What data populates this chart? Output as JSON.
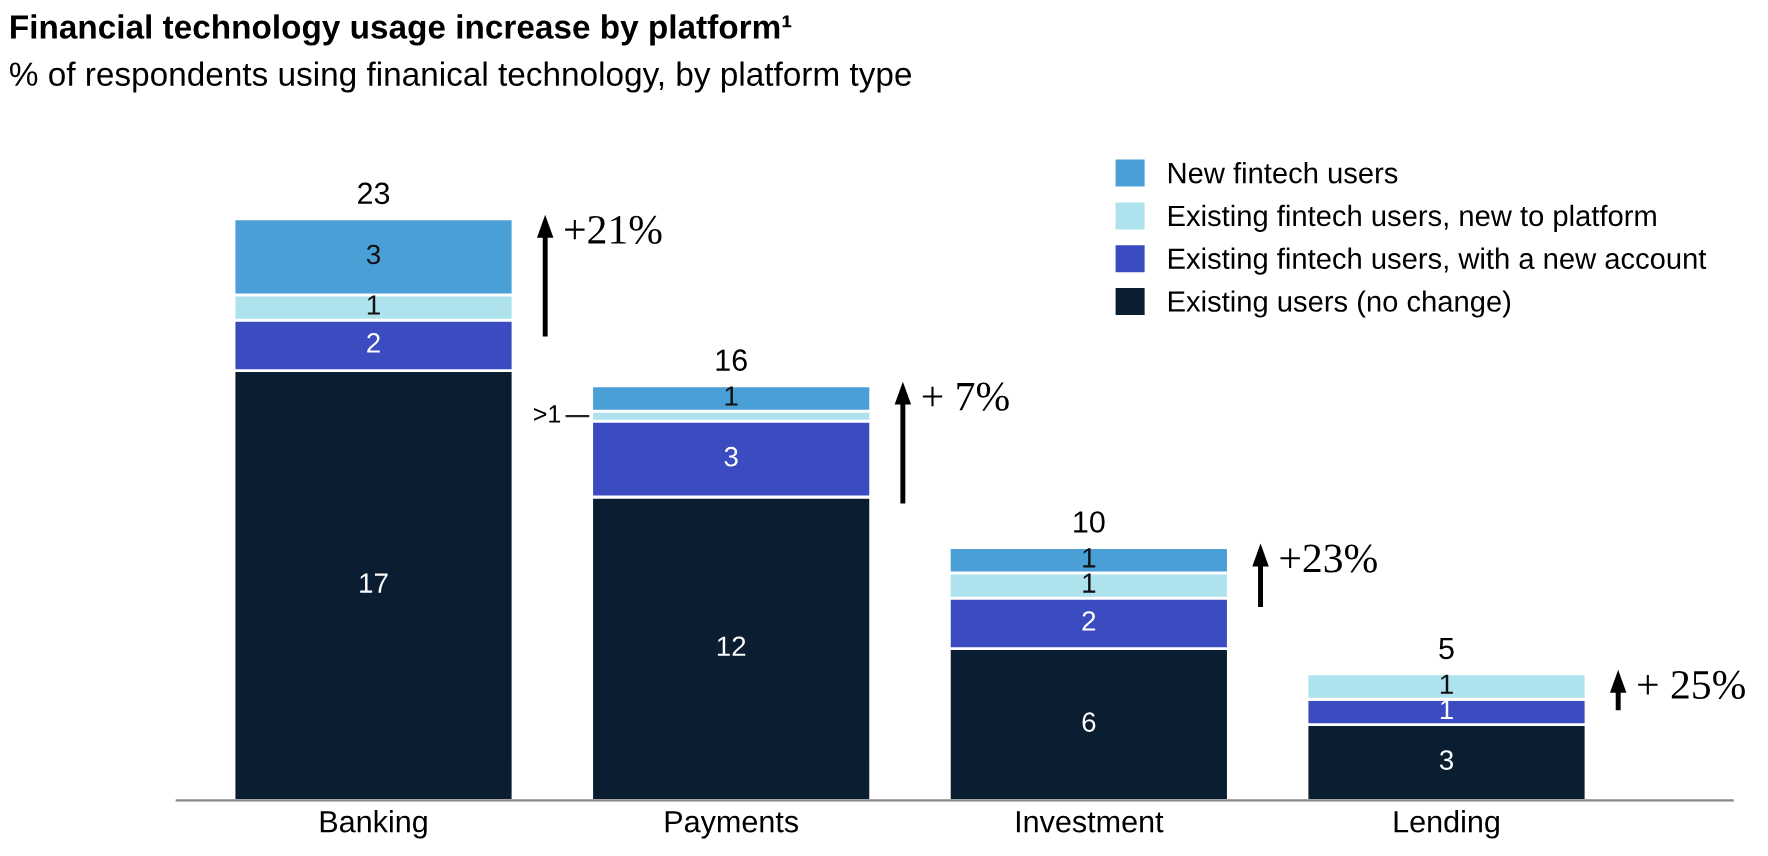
{
  "chart_data": {
    "type": "bar",
    "stacked": true,
    "title": "Financial technology usage increase by platform¹",
    "subtitle": "% of respondents using finanical technology, by platform type",
    "categories": [
      "Banking",
      "Payments",
      "Investment",
      "Lending"
    ],
    "series": [
      {
        "name": "Existing users (no change)",
        "color": "#0b1d30",
        "values": [
          17,
          12,
          6,
          3
        ],
        "value_labels": [
          "17",
          "12",
          "6",
          "3"
        ]
      },
      {
        "name": "Existing fintech users, with a new account",
        "color": "#3b4cc0",
        "values": [
          2,
          3,
          2,
          1
        ],
        "value_labels": [
          "2",
          "3",
          "2",
          "1"
        ]
      },
      {
        "name": "Existing fintech users, new to platform",
        "color": "#aee3ee",
        "values": [
          1,
          0.4,
          1,
          1
        ],
        "value_labels": [
          "1",
          ">1",
          "1",
          "1"
        ]
      },
      {
        "name": "New fintech users",
        "color": "#4a9fd6",
        "values": [
          3,
          1,
          1,
          null
        ],
        "value_labels": [
          "3",
          "1",
          "1",
          null
        ]
      }
    ],
    "totals": [
      "23",
      "16",
      "10",
      "5"
    ],
    "annotations": [
      "+21%",
      "+ 7%",
      "+23%",
      "+ 25%"
    ],
    "legend": "top right",
    "grid": false,
    "tick_labels": "x"
  }
}
